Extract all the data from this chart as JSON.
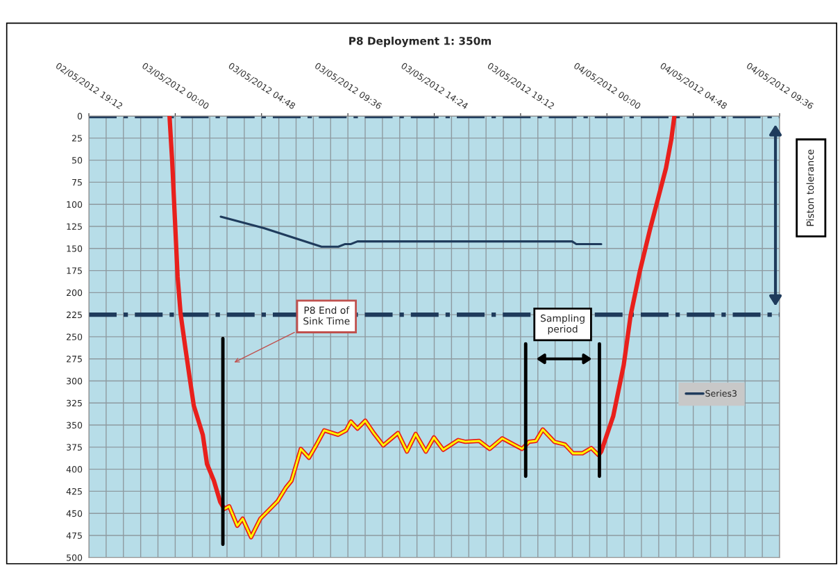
{
  "chart_data": {
    "type": "line",
    "title": "P8 Deployment 1: 350m",
    "xlim": [
      "2012-05-02T19:12",
      "2012-05-04T09:36"
    ],
    "xticks": [
      {
        "value": "2012-05-02T19:12",
        "label": "02/05/2012 19:12"
      },
      {
        "value": "2012-05-03T00:00",
        "label": "03/05/2012 00:00"
      },
      {
        "value": "2012-05-03T04:48",
        "label": "03/05/2012 04:48"
      },
      {
        "value": "2012-05-03T09:36",
        "label": "03/05/2012 09:36"
      },
      {
        "value": "2012-05-03T14:24",
        "label": "03/05/2012 14:24"
      },
      {
        "value": "2012-05-03T19:12",
        "label": "03/05/2012 19:12"
      },
      {
        "value": "2012-05-04T00:00",
        "label": "04/05/2012 00:00"
      },
      {
        "value": "2012-05-04T04:48",
        "label": "04/05/2012 04:48"
      },
      {
        "value": "2012-05-04T09:36",
        "label": "04/05/2012 09:36"
      }
    ],
    "ylim": [
      500,
      0
    ],
    "yticks": [
      0,
      25,
      50,
      75,
      100,
      125,
      150,
      175,
      200,
      225,
      250,
      275,
      300,
      325,
      350,
      375,
      400,
      425,
      450,
      475,
      500
    ],
    "grid": true,
    "legend": "right",
    "marker": "none",
    "line_style": "solid",
    "series": [
      {
        "color": "#e8201c",
        "x": [
          "2012-05-02T23:41",
          "2012-05-02T23:50",
          "2012-05-02T23:59",
          "2012-05-03T00:08",
          "2012-05-03T00:18",
          "2012-05-03T00:34",
          "2012-05-03T00:48",
          "2012-05-03T01:02",
          "2012-05-03T01:32",
          "2012-05-03T01:46",
          "2012-05-03T02:09",
          "2012-05-03T02:30",
          "2012-05-03T02:44",
          "2012-05-03T03:00",
          "2012-05-03T03:27",
          "2012-05-03T03:45",
          "2012-05-03T04:13",
          "2012-05-03T04:44",
          "2012-05-03T05:42",
          "2012-05-03T06:09",
          "2012-05-03T06:28",
          "2012-05-03T06:59",
          "2012-05-03T07:26",
          "2012-05-03T07:50",
          "2012-05-03T08:17",
          "2012-05-03T09:03",
          "2012-05-03T09:30",
          "2012-05-03T09:46",
          "2012-05-03T10:08",
          "2012-05-03T10:34",
          "2012-05-03T11:02",
          "2012-05-03T11:34",
          "2012-05-03T12:23",
          "2012-05-03T12:53",
          "2012-05-03T13:22",
          "2012-05-03T13:56",
          "2012-05-03T14:23",
          "2012-05-03T14:54",
          "2012-05-03T15:44",
          "2012-05-03T16:08",
          "2012-05-03T16:54",
          "2012-05-03T17:29",
          "2012-05-03T18:11",
          "2012-05-03T19:17",
          "2012-05-03T19:40",
          "2012-05-03T20:03",
          "2012-05-03T20:26",
          "2012-05-03T21:05",
          "2012-05-03T21:40",
          "2012-05-03T22:07",
          "2012-05-03T22:38",
          "2012-05-03T23:08",
          "2012-05-03T23:32",
          "2012-05-03T23:41",
          "2012-05-04T00:21",
          "2012-05-04T00:56",
          "2012-05-04T01:19",
          "2012-05-04T01:49",
          "2012-05-04T02:24",
          "2012-05-04T02:47",
          "2012-05-04T03:17",
          "2012-05-04T03:35",
          "2012-05-04T03:45"
        ],
        "values": [
          0,
          52,
          117,
          182,
          224,
          263,
          296,
          328,
          361,
          394,
          413,
          437,
          445,
          442,
          464,
          456,
          477,
          456,
          436,
          421,
          413,
          377,
          387,
          373,
          356,
          361,
          356,
          346,
          354,
          345,
          359,
          373,
          359,
          380,
          360,
          380,
          364,
          378,
          367,
          369,
          368,
          377,
          365,
          377,
          369,
          368,
          355,
          369,
          372,
          382,
          382,
          376,
          384,
          380,
          340,
          282,
          226,
          177,
          128,
          98,
          59,
          26,
          0
        ]
      },
      {
        "color": "#ffff00",
        "x": [
          "2012-05-03T02:44",
          "2012-05-03T03:00",
          "2012-05-03T03:27",
          "2012-05-03T03:45",
          "2012-05-03T04:13",
          "2012-05-03T04:44",
          "2012-05-03T05:42",
          "2012-05-03T06:09",
          "2012-05-03T06:28",
          "2012-05-03T06:59",
          "2012-05-03T07:26",
          "2012-05-03T07:50",
          "2012-05-03T08:17",
          "2012-05-03T09:03",
          "2012-05-03T09:30",
          "2012-05-03T09:46",
          "2012-05-03T10:08",
          "2012-05-03T10:34",
          "2012-05-03T11:02",
          "2012-05-03T11:34",
          "2012-05-03T12:23",
          "2012-05-03T12:53",
          "2012-05-03T13:22",
          "2012-05-03T13:56",
          "2012-05-03T14:23",
          "2012-05-03T14:54",
          "2012-05-03T15:44",
          "2012-05-03T16:08",
          "2012-05-03T16:54",
          "2012-05-03T17:29",
          "2012-05-03T18:11",
          "2012-05-03T19:17",
          "2012-05-03T19:40",
          "2012-05-03T20:03",
          "2012-05-03T20:26",
          "2012-05-03T21:05",
          "2012-05-03T21:40",
          "2012-05-03T22:07",
          "2012-05-03T22:38",
          "2012-05-03T23:08",
          "2012-05-03T23:32"
        ],
        "values": [
          445,
          442,
          464,
          456,
          477,
          456,
          436,
          421,
          413,
          377,
          387,
          373,
          356,
          361,
          356,
          346,
          354,
          345,
          359,
          373,
          359,
          380,
          360,
          380,
          364,
          378,
          367,
          369,
          368,
          377,
          365,
          377,
          369,
          368,
          355,
          369,
          372,
          382,
          382,
          376,
          384
        ]
      },
      {
        "name": "Series3",
        "color": "#1f3b5c",
        "x": [
          "2012-05-03T02:32",
          "2012-05-03T04:56",
          "2012-05-03T08:08",
          "2012-05-03T09:04",
          "2012-05-03T09:27",
          "2012-05-03T09:46",
          "2012-05-03T10:08",
          "2012-05-03T22:04",
          "2012-05-03T22:18",
          "2012-05-03T23:41"
        ],
        "values": [
          114,
          127,
          148,
          148,
          145,
          145,
          142,
          142,
          145,
          145
        ]
      },
      {
        "color": "#000000",
        "x": [
          "2012-05-03T02:39",
          "2012-05-03T02:39"
        ],
        "values": [
          252,
          485
        ]
      },
      {
        "color": "#000000",
        "x": [
          "2012-05-03T19:29",
          "2012-05-03T19:29"
        ],
        "values": [
          258,
          408
        ]
      },
      {
        "color": "#000000",
        "x": [
          "2012-05-03T23:35",
          "2012-05-03T23:35"
        ],
        "values": [
          258,
          408
        ]
      }
    ],
    "ref_lines": [
      {
        "axis": "y",
        "value": 0,
        "color": "#1f3b5c",
        "line_style": "dashdot"
      },
      {
        "axis": "y",
        "value": 225,
        "color": "#1f3b5c",
        "line_style": "dashdot"
      }
    ],
    "annotations": [
      "P8 End of\nSink Time",
      "Sampling\nperiod",
      "Piston tolerance"
    ]
  }
}
